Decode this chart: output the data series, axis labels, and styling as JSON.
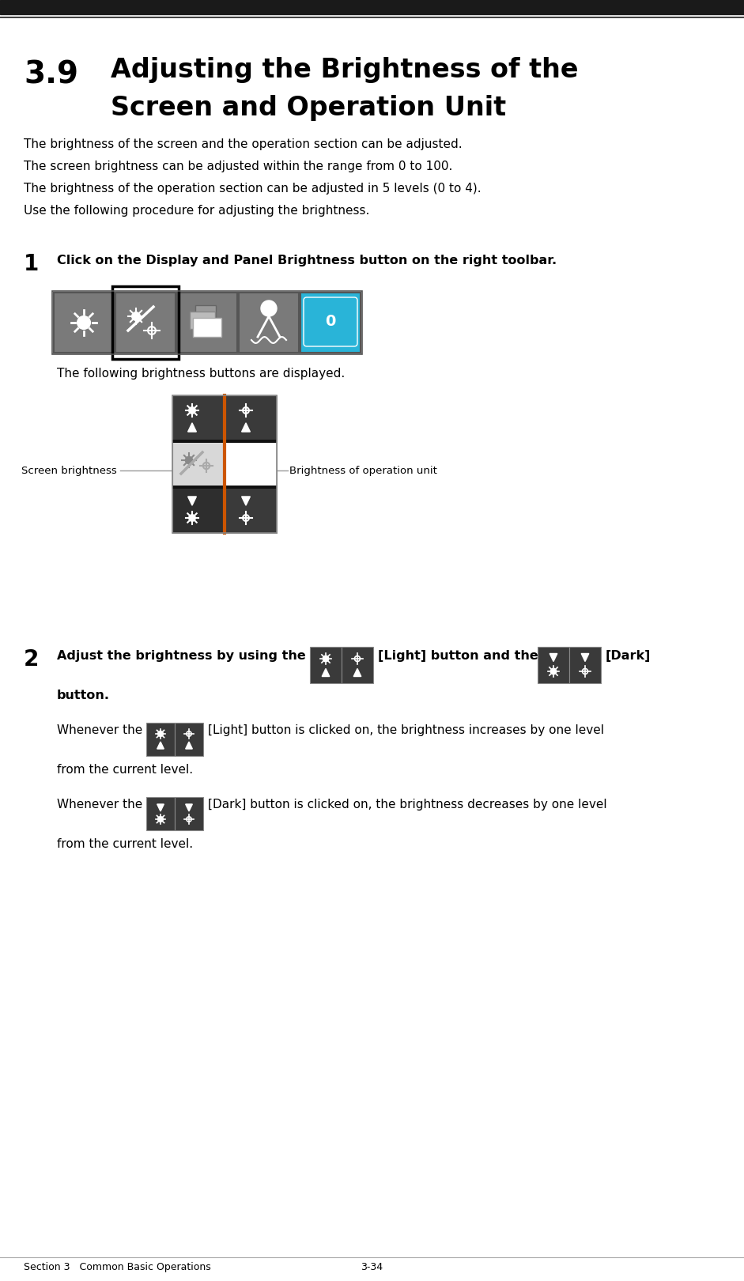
{
  "bg_color": "#ffffff",
  "top_bar_color": "#1a1a1a",
  "section_label": "Section 3   Common Basic Operations",
  "page_number": "3-34",
  "title_number": "3.9",
  "title_line1": "Adjusting the Brightness of the",
  "title_line2": "Screen and Operation Unit",
  "body_lines": [
    "The brightness of the screen and the operation section can be adjusted.",
    "The screen brightness can be adjusted within the range from 0 to 100.",
    "The brightness of the operation section can be adjusted in 5 levels (0 to 4).",
    "Use the following procedure for adjusting the brightness."
  ],
  "step1_number": "1",
  "step1_bold": "Click on the Display and Panel Brightness button on the right toolbar.",
  "step1_sub1": "The following brightness buttons are displayed.",
  "step2_number": "2",
  "step2_bold_pre": "Adjust the brightness by using the",
  "step2_bold_mid": "[Light] button and the",
  "step2_bold_post": "[Dark]",
  "step2_bold_last": "button.",
  "whenever_light_pre": "Whenever the",
  "whenever_light_post": "[Light] button is clicked on, the brightness increases by one level",
  "whenever_light_cont": "from the current level.",
  "whenever_dark_pre": "Whenever the",
  "whenever_dark_post": "[Dark] button is clicked on, the brightness decreases by one level",
  "whenever_dark_cont": "from the current level.",
  "screen_brightness_label": "Screen brightness",
  "brightness_op_label": "Brightness of operation unit"
}
